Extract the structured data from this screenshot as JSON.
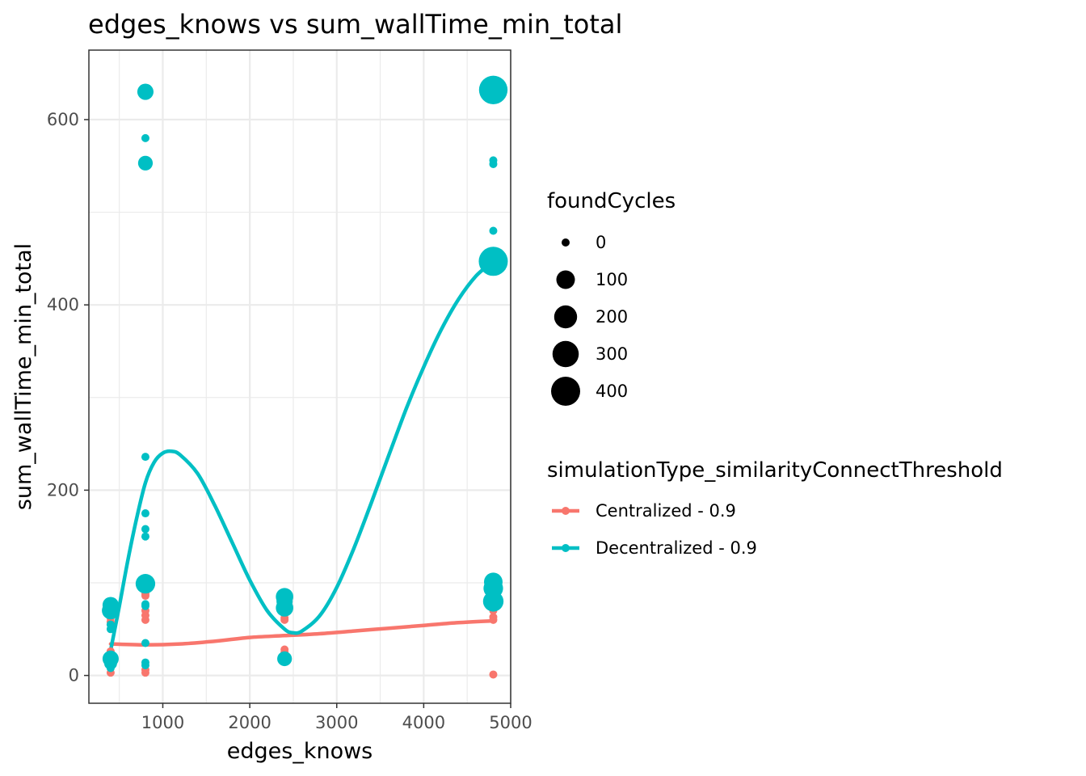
{
  "chart_data": {
    "type": "scatter",
    "title": "edges_knows  vs  sum_wallTime_min_total",
    "xlabel": "edges_knows",
    "ylabel": "sum_wallTime_min_total",
    "xlim": [
      150,
      5000
    ],
    "ylim": [
      -30,
      675
    ],
    "x_ticks": [
      1000,
      2000,
      3000,
      4000,
      5000
    ],
    "x_tick_labels": [
      "1000",
      "2000",
      "3000",
      "4000",
      "5000"
    ],
    "y_ticks": [
      0,
      200,
      400,
      600
    ],
    "y_tick_labels": [
      "0",
      "200",
      "400",
      "600"
    ],
    "grid": true,
    "size_legend": {
      "title": "foundCycles",
      "values": [
        0,
        100,
        200,
        300,
        400
      ],
      "labels": [
        "0",
        "100",
        "200",
        "300",
        "400"
      ]
    },
    "color_legend": {
      "title": "simulationType_similarityConnectThreshold",
      "placement": "right"
    },
    "series": [
      {
        "name": "Centralized - 0.9",
        "color": "#F8766D",
        "points": [
          {
            "x": 400,
            "y": 3,
            "size": 0
          },
          {
            "x": 400,
            "y": 22,
            "size": 0
          },
          {
            "x": 400,
            "y": 26,
            "size": 0
          },
          {
            "x": 400,
            "y": 58,
            "size": 0
          },
          {
            "x": 400,
            "y": 62,
            "size": 0
          },
          {
            "x": 400,
            "y": 65,
            "size": 0
          },
          {
            "x": 800,
            "y": 3,
            "size": 0
          },
          {
            "x": 800,
            "y": 6,
            "size": 0
          },
          {
            "x": 800,
            "y": 60,
            "size": 0
          },
          {
            "x": 800,
            "y": 65,
            "size": 0
          },
          {
            "x": 800,
            "y": 70,
            "size": 0
          },
          {
            "x": 800,
            "y": 86,
            "size": 0
          },
          {
            "x": 800,
            "y": 88,
            "size": 0
          },
          {
            "x": 2400,
            "y": 25,
            "size": 0
          },
          {
            "x": 2400,
            "y": 28,
            "size": 0
          },
          {
            "x": 2400,
            "y": 60,
            "size": 0
          },
          {
            "x": 2400,
            "y": 62,
            "size": 0
          },
          {
            "x": 4800,
            "y": 1,
            "size": 0
          },
          {
            "x": 4800,
            "y": 60,
            "size": 0
          },
          {
            "x": 4800,
            "y": 63,
            "size": 0
          },
          {
            "x": 4800,
            "y": 70,
            "size": 0
          },
          {
            "x": 4800,
            "y": 74,
            "size": 0
          }
        ],
        "smooth": [
          [
            400,
            34
          ],
          [
            800,
            33
          ],
          [
            1200,
            34
          ],
          [
            1600,
            37
          ],
          [
            2000,
            41
          ],
          [
            2400,
            43
          ],
          [
            2800,
            45
          ],
          [
            3200,
            48
          ],
          [
            3600,
            51
          ],
          [
            4000,
            54
          ],
          [
            4400,
            57
          ],
          [
            4800,
            59
          ]
        ]
      },
      {
        "name": "Decentralized - 0.9",
        "color": "#00BFC4",
        "points": [
          {
            "x": 400,
            "y": 8,
            "size": 0
          },
          {
            "x": 400,
            "y": 13,
            "size": 20
          },
          {
            "x": 400,
            "y": 18,
            "size": 60
          },
          {
            "x": 400,
            "y": 20,
            "size": 20
          },
          {
            "x": 400,
            "y": 50,
            "size": 0
          },
          {
            "x": 400,
            "y": 55,
            "size": 0
          },
          {
            "x": 400,
            "y": 70,
            "size": 80
          },
          {
            "x": 400,
            "y": 76,
            "size": 60
          },
          {
            "x": 800,
            "y": 11,
            "size": 0
          },
          {
            "x": 800,
            "y": 14,
            "size": 0
          },
          {
            "x": 800,
            "y": 35,
            "size": 0
          },
          {
            "x": 800,
            "y": 75,
            "size": 0
          },
          {
            "x": 800,
            "y": 77,
            "size": 0
          },
          {
            "x": 800,
            "y": 99,
            "size": 120
          },
          {
            "x": 800,
            "y": 150,
            "size": 0
          },
          {
            "x": 800,
            "y": 158,
            "size": 0
          },
          {
            "x": 800,
            "y": 175,
            "size": 0
          },
          {
            "x": 800,
            "y": 236,
            "size": 0
          },
          {
            "x": 800,
            "y": 553,
            "size": 40
          },
          {
            "x": 800,
            "y": 580,
            "size": 0
          },
          {
            "x": 800,
            "y": 630,
            "size": 60
          },
          {
            "x": 2400,
            "y": 18,
            "size": 40
          },
          {
            "x": 2400,
            "y": 19,
            "size": 20
          },
          {
            "x": 2400,
            "y": 73,
            "size": 80
          },
          {
            "x": 2400,
            "y": 80,
            "size": 60
          },
          {
            "x": 2400,
            "y": 85,
            "size": 80
          },
          {
            "x": 4800,
            "y": 80,
            "size": 140
          },
          {
            "x": 4800,
            "y": 94,
            "size": 120
          },
          {
            "x": 4800,
            "y": 101,
            "size": 100
          },
          {
            "x": 4800,
            "y": 447,
            "size": 400
          },
          {
            "x": 4800,
            "y": 480,
            "size": 0
          },
          {
            "x": 4800,
            "y": 552,
            "size": 0
          },
          {
            "x": 4800,
            "y": 556,
            "size": 0
          },
          {
            "x": 4800,
            "y": 632,
            "size": 380
          }
        ],
        "smooth": [
          [
            400,
            27
          ],
          [
            500,
            75
          ],
          [
            600,
            125
          ],
          [
            700,
            170
          ],
          [
            800,
            208
          ],
          [
            900,
            230
          ],
          [
            1000,
            240
          ],
          [
            1100,
            242
          ],
          [
            1200,
            238
          ],
          [
            1400,
            218
          ],
          [
            1600,
            183
          ],
          [
            1800,
            143
          ],
          [
            2000,
            103
          ],
          [
            2200,
            70
          ],
          [
            2400,
            50
          ],
          [
            2500,
            46
          ],
          [
            2600,
            48
          ],
          [
            2800,
            64
          ],
          [
            3000,
            95
          ],
          [
            3200,
            138
          ],
          [
            3400,
            187
          ],
          [
            3600,
            238
          ],
          [
            3800,
            288
          ],
          [
            4000,
            333
          ],
          [
            4200,
            373
          ],
          [
            4400,
            406
          ],
          [
            4600,
            431
          ],
          [
            4800,
            447
          ]
        ]
      }
    ]
  }
}
